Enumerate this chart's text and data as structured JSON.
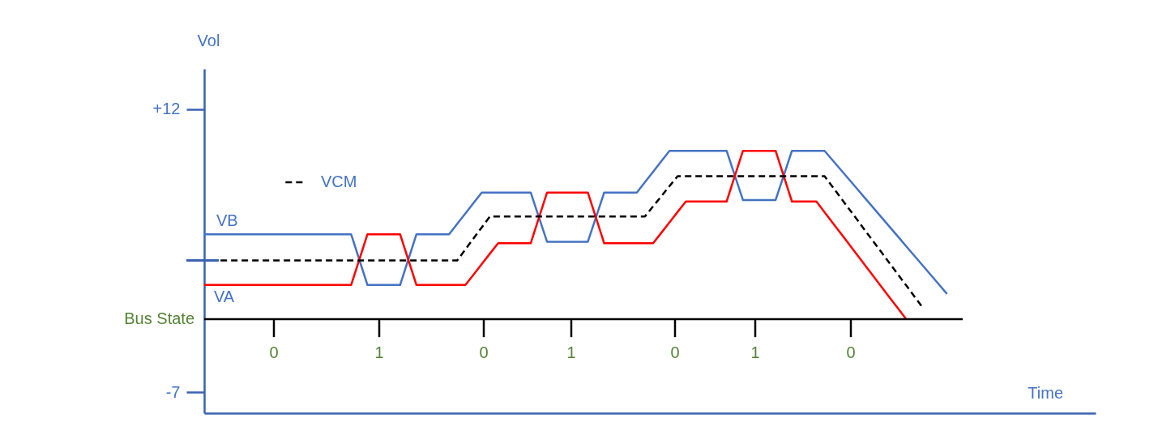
{
  "chart_data": {
    "type": "line",
    "ylabel": "Vol",
    "ylim": [
      -8.4,
      14.7
    ],
    "yticks": [
      {
        "value": 12,
        "label": "+12"
      },
      {
        "value": -7,
        "label": "-7"
      }
    ],
    "tick_labels": "y",
    "legend": "top left",
    "categories": [
      null,
      null,
      null,
      null,
      null,
      null,
      null,
      null,
      null,
      null,
      null,
      null,
      null,
      null,
      null,
      null,
      null,
      null,
      null,
      null,
      null,
      null,
      null,
      null,
      null,
      null,
      null,
      null,
      null,
      null,
      null,
      null,
      null,
      null,
      null,
      null,
      null,
      null,
      null,
      null,
      null,
      null,
      null,
      null,
      null,
      null,
      null,
      null,
      null,
      null,
      null,
      null,
      null,
      null,
      null,
      null,
      null,
      null,
      null,
      null,
      null,
      null,
      null,
      null,
      null,
      null,
      null,
      null,
      null,
      null,
      null,
      null,
      null,
      null,
      null,
      null,
      null,
      null,
      null,
      null,
      null,
      null,
      null,
      null,
      null,
      null,
      null,
      null,
      null,
      null,
      null,
      null
    ],
    "series": [
      {
        "name": "VB",
        "color": "#4472c4",
        "line_style": "solid",
        "values": [
          3.6,
          3.6,
          3.6,
          3.6,
          3.6,
          3.6,
          3.6,
          3.6,
          3.6,
          3.6,
          3.6,
          3.6,
          3.6,
          3.6,
          3.6,
          3.6,
          3.6,
          3.6,
          3.6,
          1.9,
          0.2,
          0.2,
          0.2,
          0.2,
          0.2,
          1.9,
          3.6,
          3.6,
          3.6,
          3.6,
          3.6,
          4.3,
          5.0,
          5.7,
          6.4,
          6.4,
          6.4,
          6.4,
          6.4,
          6.4,
          6.4,
          4.75,
          3.1,
          3.1,
          3.1,
          3.1,
          3.1,
          3.1,
          4.75,
          6.4,
          6.4,
          6.4,
          6.4,
          6.4,
          7.1,
          7.8,
          8.5,
          9.2,
          9.2,
          9.2,
          9.2,
          9.2,
          9.2,
          9.2,
          9.2,
          7.55,
          5.9,
          5.9,
          5.9,
          5.9,
          5.9,
          7.55,
          9.2,
          9.2,
          9.2,
          9.2,
          9.2,
          8.56,
          7.92,
          7.28,
          6.64,
          6.0,
          5.36,
          4.72,
          4.08,
          3.44,
          2.8,
          2.16,
          1.52,
          0.88,
          0.24,
          -0.4
        ]
      },
      {
        "name": "VA",
        "color": "#ff0000",
        "line_style": "solid",
        "values": [
          0.2,
          0.2,
          0.2,
          0.2,
          0.2,
          0.2,
          0.2,
          0.2,
          0.2,
          0.2,
          0.2,
          0.2,
          0.2,
          0.2,
          0.2,
          0.2,
          0.2,
          0.2,
          0.2,
          1.9,
          3.6,
          3.6,
          3.6,
          3.6,
          3.6,
          1.9,
          0.2,
          0.2,
          0.2,
          0.2,
          0.2,
          0.2,
          0.2,
          0.9,
          1.6,
          2.3,
          3.0,
          3.0,
          3.0,
          3.0,
          3.0,
          4.7,
          6.4,
          6.4,
          6.4,
          6.4,
          6.4,
          6.4,
          4.7,
          3.0,
          3.0,
          3.0,
          3.0,
          3.0,
          3.0,
          3.0,
          3.7,
          4.4,
          5.1,
          5.8,
          5.8,
          5.8,
          5.8,
          5.8,
          5.8,
          7.5,
          9.2,
          9.2,
          9.2,
          9.2,
          9.2,
          7.5,
          5.8,
          5.8,
          5.8,
          5.8,
          5.08,
          4.36,
          3.65,
          2.93,
          2.21,
          1.49,
          0.77,
          0.05,
          -0.67,
          -1.38,
          -2.1,
          null,
          null,
          null,
          null,
          null
        ]
      },
      {
        "name": "VCM",
        "color": "#000000",
        "line_style": "dashed",
        "values": [
          null,
          null,
          1.85,
          1.85,
          1.85,
          1.85,
          1.85,
          1.85,
          1.85,
          1.85,
          1.85,
          1.85,
          1.85,
          1.85,
          1.85,
          1.85,
          1.85,
          1.85,
          1.85,
          1.85,
          1.85,
          1.85,
          1.85,
          1.85,
          1.85,
          1.85,
          1.85,
          1.85,
          1.85,
          1.85,
          1.85,
          1.85,
          2.59,
          3.33,
          4.06,
          4.8,
          4.8,
          4.8,
          4.8,
          4.8,
          4.8,
          4.8,
          4.8,
          4.8,
          4.8,
          4.8,
          4.8,
          4.8,
          4.8,
          4.8,
          4.8,
          4.8,
          4.8,
          4.8,
          4.8,
          5.48,
          6.15,
          6.83,
          7.5,
          7.5,
          7.5,
          7.5,
          7.5,
          7.5,
          7.5,
          7.5,
          7.5,
          7.5,
          7.5,
          7.5,
          7.5,
          7.5,
          7.5,
          7.5,
          7.5,
          7.5,
          7.5,
          6.77,
          6.03,
          5.3,
          4.57,
          3.83,
          3.1,
          2.37,
          1.63,
          0.9,
          0.17,
          -0.57,
          -1.3,
          null,
          null,
          null
        ]
      }
    ],
    "ref_lines": [
      {
        "axis": "y",
        "value": -2.1,
        "label": "Bus State",
        "color": "#000000",
        "line_style": "solid"
      }
    ],
    "annotations": [
      "Time",
      "0",
      "1",
      "0",
      "1",
      "0",
      "1",
      "0"
    ]
  }
}
